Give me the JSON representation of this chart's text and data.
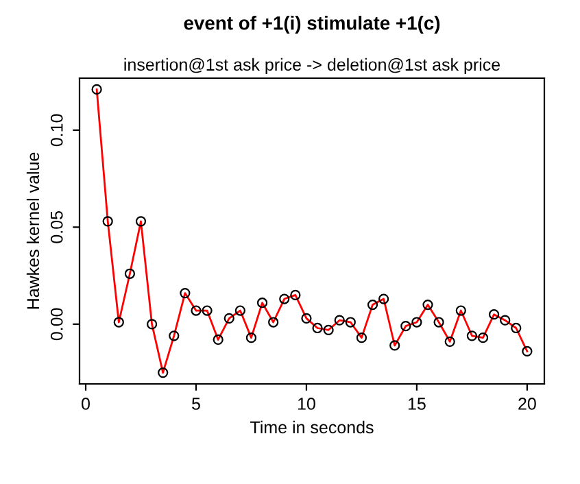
{
  "chart_data": {
    "type": "line",
    "title": "event of +1(i) stimulate +1(c)",
    "subtitle": "insertion@1st ask price -> deletion@1st ask price",
    "xlabel": "Time in seconds",
    "ylabel": "Hawkes kernel value",
    "x": [
      0.5,
      1,
      1.5,
      2,
      2.5,
      3,
      3.5,
      4,
      4.5,
      5,
      5.5,
      6,
      6.5,
      7,
      7.5,
      8,
      8.5,
      9,
      9.5,
      10,
      10.5,
      11,
      11.5,
      12,
      12.5,
      13,
      13.5,
      14,
      14.5,
      15,
      15.5,
      16,
      16.5,
      17,
      17.5,
      18,
      18.5,
      19,
      19.5,
      20
    ],
    "series": [
      {
        "color": "#ff0000",
        "values": [
          0.121,
          0.053,
          0.001,
          0.026,
          0.053,
          0.0,
          -0.025,
          -0.006,
          0.016,
          0.007,
          0.007,
          -0.008,
          0.003,
          0.007,
          -0.007,
          0.011,
          0.001,
          0.013,
          0.015,
          0.003,
          -0.002,
          -0.003,
          0.002,
          0.001,
          -0.007,
          0.01,
          0.013,
          -0.011,
          -0.001,
          0.001,
          0.01,
          0.001,
          -0.009,
          0.007,
          -0.006,
          -0.007,
          0.005,
          0.002,
          -0.002,
          -0.014
        ]
      }
    ],
    "xlim": [
      -0.28,
      20.78
    ],
    "ylim": [
      -0.0308,
      0.1268
    ],
    "xticks": [
      0,
      5,
      10,
      15,
      20
    ],
    "yticks": [
      {
        "value": 0,
        "label": "0.00"
      },
      {
        "value": 0.05,
        "label": "0.05"
      },
      {
        "value": 0.1,
        "label": "0.10"
      }
    ],
    "marker": "circle",
    "line_style": "solid",
    "grid": false,
    "legend": false
  }
}
